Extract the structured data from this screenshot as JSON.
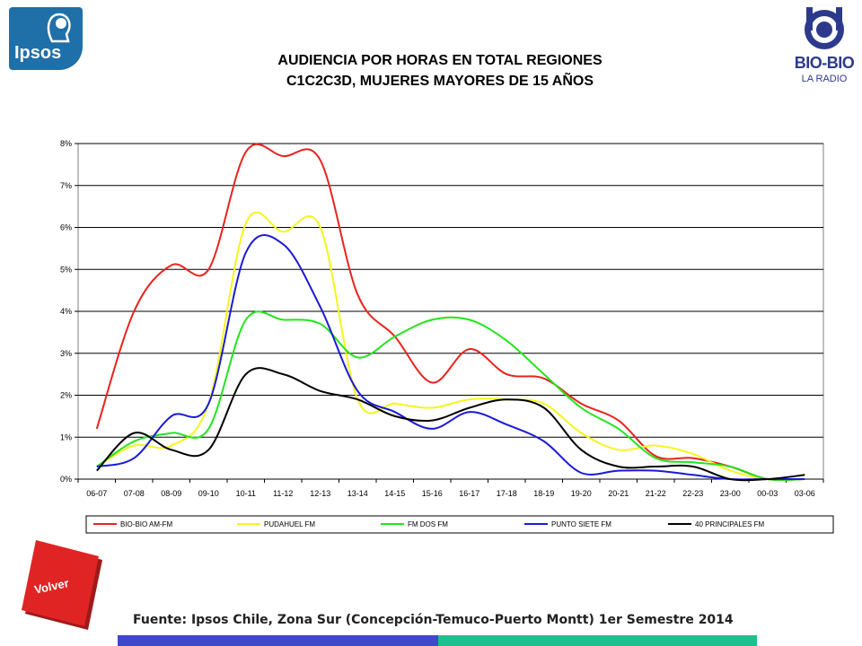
{
  "header": {
    "title_line1": "AUDIENCIA POR HORAS EN TOTAL REGIONES",
    "title_line2": "C1C2C3D, MUJERES MAYORES DE 15 AÑOS",
    "left_logo_text": "Ipsos",
    "right_logo_name": "BIO-BIO",
    "right_logo_sub": "LA RADIO"
  },
  "footer": {
    "volver_label": "Volver",
    "source": "Fuente: Ipsos Chile, Zona Sur (Concepción-Temuco-Puerto Montt) 1er Semestre 2014",
    "bar_colors": [
      "#3f48c8",
      "#1bc08e"
    ]
  },
  "chart_data": {
    "type": "line",
    "title": "AUDIENCIA POR HORAS EN TOTAL REGIONES C1C2C3D, MUJERES MAYORES DE 15 AÑOS",
    "xlabel": "",
    "ylabel": "",
    "ylim": [
      0,
      8
    ],
    "y_ticks": [
      0,
      1,
      2,
      3,
      4,
      5,
      6,
      7,
      8
    ],
    "y_tick_labels": [
      "0%",
      "1%",
      "2%",
      "3%",
      "4%",
      "5%",
      "6%",
      "7%",
      "8%"
    ],
    "grid": true,
    "legend_position": "bottom",
    "smooth": true,
    "categories": [
      "06-07",
      "07-08",
      "08-09",
      "09-10",
      "10-11",
      "11-12",
      "12-13",
      "13-14",
      "14-15",
      "15-16",
      "16-17",
      "17-18",
      "18-19",
      "19-20",
      "20-21",
      "21-22",
      "22-23",
      "23-00",
      "00-03",
      "03-06"
    ],
    "series": [
      {
        "name": "BIO-BIO AM-FM",
        "color": "#e8231e",
        "values": [
          1.2,
          4.0,
          5.1,
          5.0,
          7.8,
          7.7,
          7.6,
          4.4,
          3.4,
          2.3,
          3.1,
          2.5,
          2.4,
          1.8,
          1.4,
          0.55,
          0.5,
          0.3,
          0.0,
          0.0
        ]
      },
      {
        "name": "PUDAHUEL FM",
        "color": "#f5f51e",
        "values": [
          0.3,
          0.8,
          0.8,
          1.8,
          6.1,
          5.9,
          6.0,
          1.9,
          1.8,
          1.7,
          1.9,
          1.9,
          1.8,
          1.1,
          0.7,
          0.8,
          0.6,
          0.2,
          0.0,
          0.0
        ]
      },
      {
        "name": "FM DOS FM",
        "color": "#22e51c",
        "values": [
          0.3,
          0.9,
          1.1,
          1.2,
          3.8,
          3.8,
          3.7,
          2.9,
          3.4,
          3.8,
          3.8,
          3.3,
          2.5,
          1.7,
          1.2,
          0.5,
          0.4,
          0.3,
          0.0,
          0.0
        ]
      },
      {
        "name": "PUNTO SIETE FM",
        "color": "#1a1ad8",
        "values": [
          0.3,
          0.5,
          1.5,
          1.8,
          5.4,
          5.6,
          4.1,
          2.1,
          1.6,
          1.2,
          1.6,
          1.3,
          0.9,
          0.15,
          0.2,
          0.2,
          0.1,
          0.0,
          0.0,
          0.0
        ]
      },
      {
        "name": "40 PRINCIPALES FM",
        "color": "#000000",
        "values": [
          0.2,
          1.1,
          0.7,
          0.7,
          2.5,
          2.5,
          2.1,
          1.9,
          1.5,
          1.4,
          1.7,
          1.9,
          1.7,
          0.7,
          0.3,
          0.3,
          0.3,
          0.0,
          0.0,
          0.1
        ]
      }
    ]
  }
}
